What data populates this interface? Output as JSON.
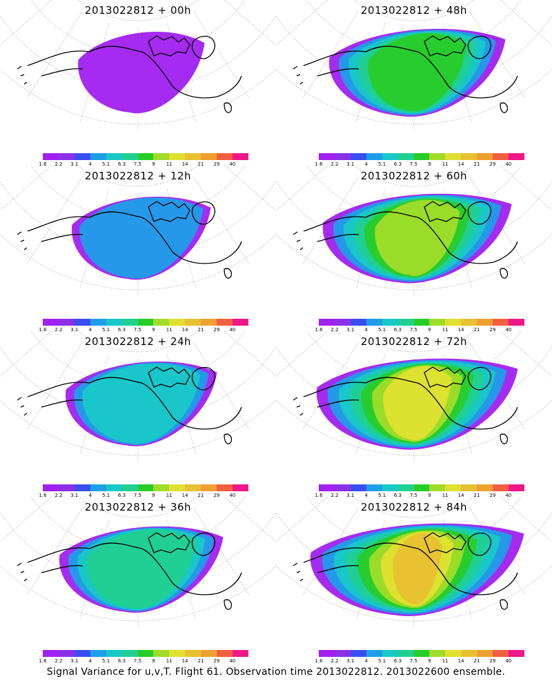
{
  "panels": [
    {
      "title": "2013022812 + 00h",
      "level": 1
    },
    {
      "title": "2013022812 + 48h",
      "level": 5
    },
    {
      "title": "2013022812 + 12h",
      "level": 2
    },
    {
      "title": "2013022812 + 60h",
      "level": 6
    },
    {
      "title": "2013022812 + 24h",
      "level": 3
    },
    {
      "title": "2013022812 + 72h",
      "level": 7
    },
    {
      "title": "2013022812 + 36h",
      "level": 4
    },
    {
      "title": "2013022812 + 84h",
      "level": 8
    }
  ],
  "legend": {
    "labels": [
      "1.6",
      "2.2",
      "3.1",
      "4",
      "5.1",
      "6.3",
      "7.5",
      "9",
      "11",
      "14",
      "21",
      "29",
      "40"
    ],
    "colors": [
      "#a020f0",
      "#8c30e8",
      "#3a4ef0",
      "#1e9ee8",
      "#18c8c8",
      "#20d090",
      "#28cc28",
      "#a0dc28",
      "#e0e030",
      "#e8c030",
      "#f0a030",
      "#f06040",
      "#f01888"
    ]
  },
  "footer": "Signal Variance for u,v,T. Flight 61. Observation time 2013022812. 2013022600 ensemble."
}
